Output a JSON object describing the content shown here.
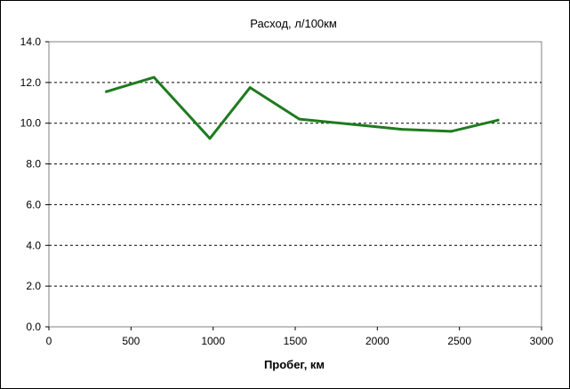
{
  "chart_data": {
    "type": "line",
    "title": "Расход, л/100км",
    "xlabel": "Пробег, км",
    "ylabel": "",
    "xlim": [
      0,
      3000
    ],
    "ylim": [
      0,
      14
    ],
    "x_ticks": [
      0,
      500,
      1000,
      1500,
      2000,
      2500,
      3000
    ],
    "x_tick_labels": [
      "0",
      "500",
      "1000",
      "1500",
      "2000",
      "2500",
      "3000"
    ],
    "y_ticks": [
      0,
      2,
      4,
      6,
      8,
      10,
      12,
      14
    ],
    "y_tick_labels": [
      "0.0",
      "2.0",
      "4.0",
      "6.0",
      "8.0",
      "10.0",
      "12.0",
      "14.0"
    ],
    "grid": "horizontal dashed",
    "series": [
      {
        "color": "#1e7b1e",
        "x": [
          350,
          640,
          980,
          1225,
          1525,
          2150,
          2450,
          2735
        ],
        "y": [
          11.55,
          12.25,
          9.25,
          11.75,
          10.2,
          9.7,
          9.6,
          10.15
        ]
      }
    ]
  }
}
